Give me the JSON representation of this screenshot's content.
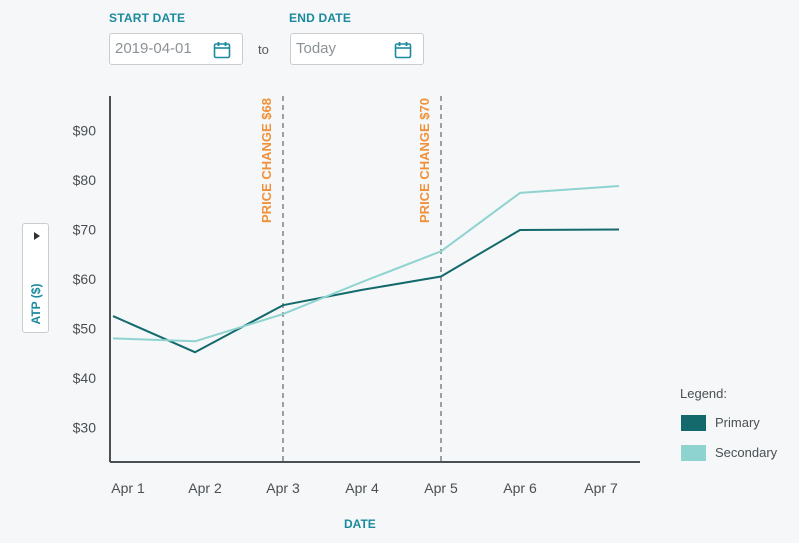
{
  "filters": {
    "start_label": "START DATE",
    "start_value": "2019-04-01",
    "to_label": "to",
    "end_label": "END DATE",
    "end_placeholder": "Today"
  },
  "legend": {
    "title": "Legend:",
    "items": [
      {
        "label": "Primary",
        "color": "#13696b"
      },
      {
        "label": "Secondary",
        "color": "#8fd3d1"
      }
    ]
  },
  "icons": {
    "calendar": "calendar-icon",
    "expand": "triangle-right-icon"
  },
  "chart_data": {
    "type": "line",
    "categories": [
      "Apr 1",
      "Apr 2",
      "Apr 3",
      "Apr 4",
      "Apr 5",
      "Apr 6",
      "Apr 7"
    ],
    "series": [
      {
        "name": "Primary",
        "color": "#13696b",
        "values": [
          52.5,
          45.2,
          54.7,
          57.8,
          60.5,
          69.9,
          70.0
        ]
      },
      {
        "name": "Secondary",
        "color": "#8fd3d1",
        "values": [
          48.0,
          47.4,
          52.9,
          59.4,
          65.6,
          77.4,
          78.8
        ]
      }
    ],
    "ylabel": "ATP ($)",
    "xlabel": "DATE",
    "yticks": [
      30,
      40,
      50,
      60,
      70,
      80,
      90
    ],
    "ytick_labels": [
      "$30",
      "$40",
      "$50",
      "$60",
      "$70",
      "$80",
      "$90"
    ],
    "ylim": [
      23,
      97
    ],
    "annotations": [
      {
        "at": "Apr 3",
        "label": "PRICE CHANGE $68",
        "color": "#f0913a"
      },
      {
        "at": "Apr 5",
        "label": "PRICE CHANGE $70",
        "color": "#f0913a"
      }
    ],
    "grid": false
  }
}
